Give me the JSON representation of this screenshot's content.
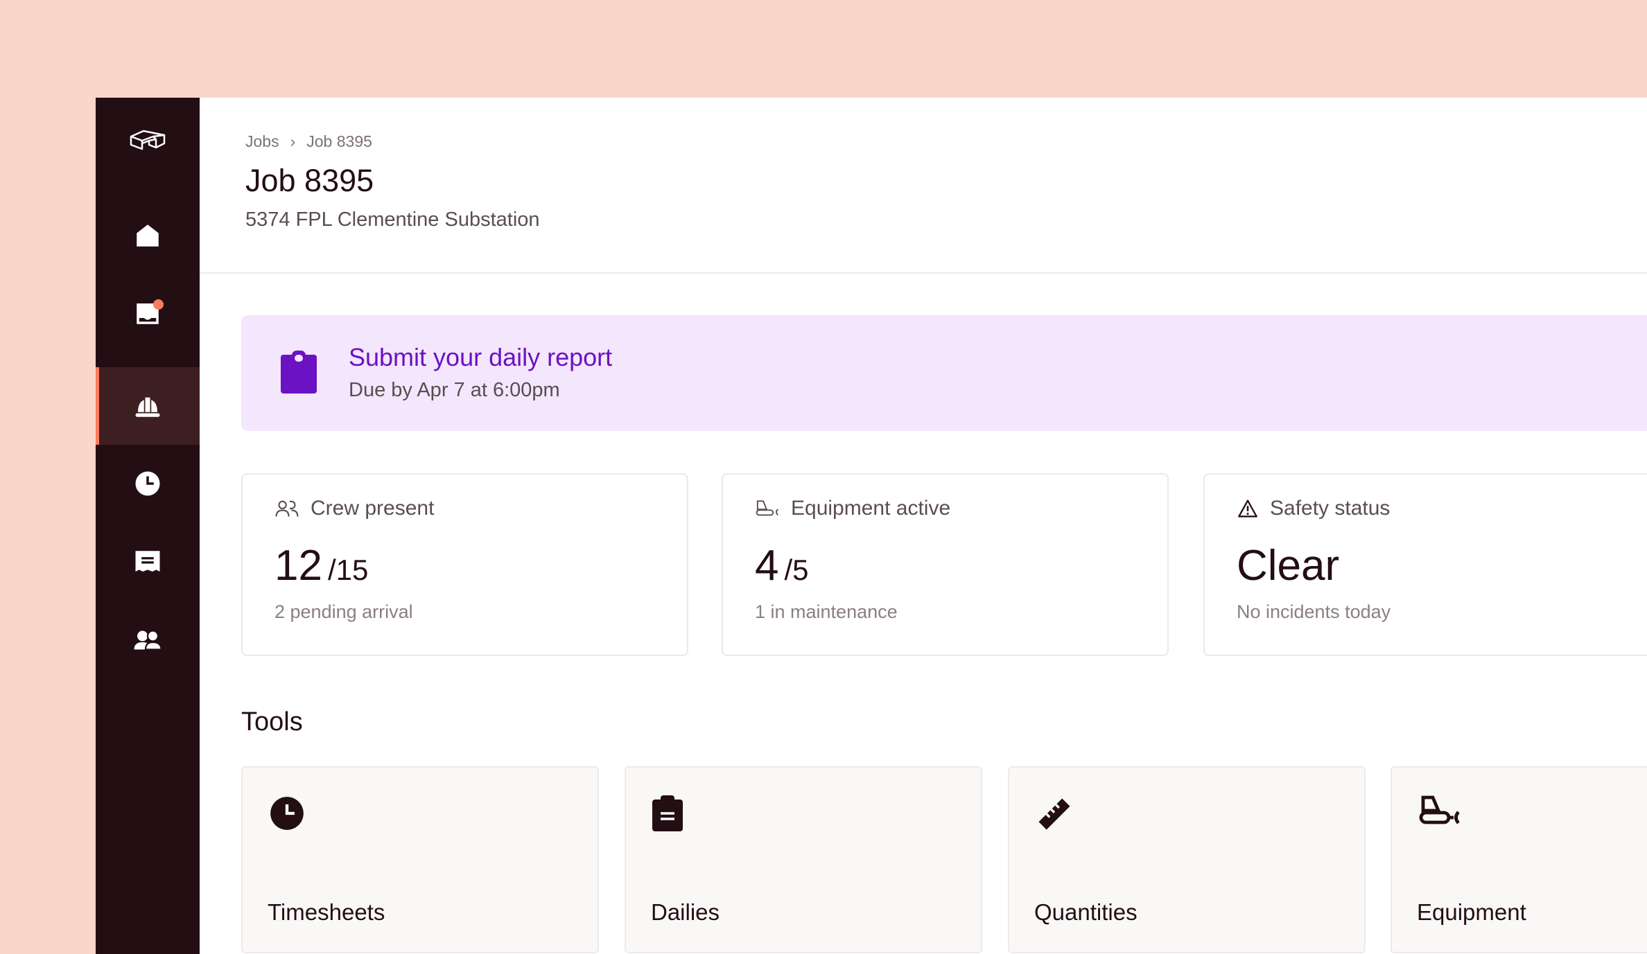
{
  "colors": {
    "background": "#FAD5CA",
    "sidebar": "#230E14",
    "accent": "#FF7A5C",
    "banner": "#F4E6FC",
    "banner_text": "#6A12C4"
  },
  "sidebar": {
    "items": [
      {
        "name": "logo",
        "icon": "logo-icon"
      },
      {
        "name": "home",
        "icon": "home-icon"
      },
      {
        "name": "inbox",
        "icon": "inbox-icon",
        "has_notification": true
      },
      {
        "name": "jobs",
        "icon": "hard-hat-icon",
        "active": true
      },
      {
        "name": "time",
        "icon": "clock-icon"
      },
      {
        "name": "receipts",
        "icon": "receipt-icon"
      },
      {
        "name": "people",
        "icon": "people-icon"
      }
    ]
  },
  "breadcrumb": [
    "Jobs",
    "Job 8395"
  ],
  "header": {
    "title": "Job 8395",
    "subtitle": "5374 FPL Clementine Substation"
  },
  "banner": {
    "title": "Submit your daily report",
    "subtitle": "Due by Apr 7 at 6:00pm",
    "icon": "clipboard-icon"
  },
  "stats": [
    {
      "label": "Crew present",
      "value": "12",
      "total": "/15",
      "note": "2 pending arrival",
      "icon": "people-outline-icon"
    },
    {
      "label": "Equipment active",
      "value": "4",
      "total": "/5",
      "note": "1 in maintenance",
      "icon": "bulldozer-outline-icon"
    },
    {
      "label": "Safety status",
      "value": "Clear",
      "total": "",
      "note": "No incidents today",
      "icon": "warning-icon"
    }
  ],
  "tools": {
    "heading": "Tools",
    "items": [
      {
        "label": "Timesheets",
        "icon": "clock-icon"
      },
      {
        "label": "Dailies",
        "icon": "clipboard-icon"
      },
      {
        "label": "Quantities",
        "icon": "ruler-icon"
      },
      {
        "label": "Equipment",
        "icon": "bulldozer-icon"
      }
    ]
  }
}
